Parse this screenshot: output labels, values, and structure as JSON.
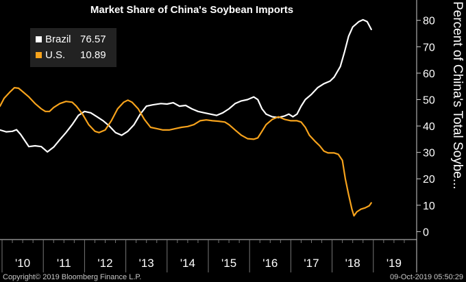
{
  "title": "Market Share of China's Soybean Imports",
  "footer": {
    "copyright": "Copyright© 2019 Bloomberg Finance L.P.",
    "timestamp": "09-Oct-2019 05:50:29"
  },
  "legend": [
    {
      "name": "Brazil",
      "value": "76.57",
      "color": "#ffffff"
    },
    {
      "name": "U.S.",
      "value": "10.89",
      "color": "#f7a31c"
    }
  ],
  "chart_data": {
    "type": "line",
    "title": "Market Share of China's Soybean Imports",
    "ylabel": "Percent of China's Total Soybe...",
    "ylim": [
      -3,
      82
    ],
    "yticks": [
      0,
      10,
      20,
      30,
      40,
      50,
      60,
      70,
      80
    ],
    "xlim": [
      2009.45,
      2019.55
    ],
    "xticks": [
      {
        "x": 2010,
        "label": "'10"
      },
      {
        "x": 2011,
        "label": "'11"
      },
      {
        "x": 2012,
        "label": "'12"
      },
      {
        "x": 2013,
        "label": "'13"
      },
      {
        "x": 2014,
        "label": "'14"
      },
      {
        "x": 2015,
        "label": "'15"
      },
      {
        "x": 2016,
        "label": "'16"
      },
      {
        "x": 2017,
        "label": "'17"
      },
      {
        "x": 2018,
        "label": "'18"
      },
      {
        "x": 2019,
        "label": "'19"
      }
    ],
    "grid": false,
    "legend_position": "top-left",
    "series": [
      {
        "name": "Brazil",
        "color": "#ffffff",
        "points": [
          [
            2009.45,
            38.5
          ],
          [
            2009.6,
            37.8
          ],
          [
            2009.75,
            38.0
          ],
          [
            2009.85,
            38.6
          ],
          [
            2009.95,
            36.8
          ],
          [
            2010.05,
            34.5
          ],
          [
            2010.15,
            32.2
          ],
          [
            2010.3,
            32.5
          ],
          [
            2010.45,
            32.2
          ],
          [
            2010.6,
            30.2
          ],
          [
            2010.75,
            32.0
          ],
          [
            2010.9,
            34.8
          ],
          [
            2011.05,
            37.5
          ],
          [
            2011.2,
            40.5
          ],
          [
            2011.35,
            44.0
          ],
          [
            2011.5,
            45.5
          ],
          [
            2011.65,
            45.0
          ],
          [
            2011.8,
            43.5
          ],
          [
            2011.95,
            42.0
          ],
          [
            2012.1,
            40.0
          ],
          [
            2012.25,
            37.5
          ],
          [
            2012.4,
            36.5
          ],
          [
            2012.55,
            38.0
          ],
          [
            2012.7,
            40.5
          ],
          [
            2012.85,
            44.5
          ],
          [
            2013.0,
            47.5
          ],
          [
            2013.15,
            48.0
          ],
          [
            2013.35,
            48.5
          ],
          [
            2013.5,
            48.3
          ],
          [
            2013.65,
            48.8
          ],
          [
            2013.8,
            47.5
          ],
          [
            2013.95,
            47.8
          ],
          [
            2014.1,
            46.5
          ],
          [
            2014.25,
            45.5
          ],
          [
            2014.4,
            45.0
          ],
          [
            2014.55,
            44.5
          ],
          [
            2014.7,
            44.0
          ],
          [
            2014.85,
            45.0
          ],
          [
            2015.0,
            46.5
          ],
          [
            2015.15,
            48.5
          ],
          [
            2015.3,
            49.5
          ],
          [
            2015.45,
            50.0
          ],
          [
            2015.6,
            51.0
          ],
          [
            2015.7,
            50.0
          ],
          [
            2015.8,
            46.5
          ],
          [
            2015.9,
            44.5
          ],
          [
            2016.05,
            43.5
          ],
          [
            2016.2,
            43.2
          ],
          [
            2016.35,
            43.8
          ],
          [
            2016.45,
            44.5
          ],
          [
            2016.55,
            43.5
          ],
          [
            2016.65,
            44.5
          ],
          [
            2016.75,
            47.5
          ],
          [
            2016.85,
            50.0
          ],
          [
            2017.0,
            52.0
          ],
          [
            2017.15,
            54.5
          ],
          [
            2017.3,
            56.0
          ],
          [
            2017.45,
            57.0
          ],
          [
            2017.55,
            58.5
          ],
          [
            2017.7,
            62.5
          ],
          [
            2017.8,
            68.0
          ],
          [
            2017.9,
            74.0
          ],
          [
            2018.0,
            77.5
          ],
          [
            2018.15,
            79.5
          ],
          [
            2018.25,
            80.2
          ],
          [
            2018.35,
            79.5
          ],
          [
            2018.45,
            76.57
          ]
        ]
      },
      {
        "name": "U.S.",
        "color": "#f7a31c",
        "points": [
          [
            2009.45,
            47.5
          ],
          [
            2009.55,
            50.5
          ],
          [
            2009.7,
            53.0
          ],
          [
            2009.8,
            54.5
          ],
          [
            2009.9,
            54.3
          ],
          [
            2010.0,
            53.0
          ],
          [
            2010.15,
            51.0
          ],
          [
            2010.3,
            48.5
          ],
          [
            2010.45,
            46.5
          ],
          [
            2010.55,
            45.5
          ],
          [
            2010.65,
            45.5
          ],
          [
            2010.75,
            47.0
          ],
          [
            2010.9,
            48.5
          ],
          [
            2011.05,
            49.3
          ],
          [
            2011.2,
            49.0
          ],
          [
            2011.3,
            47.5
          ],
          [
            2011.45,
            44.5
          ],
          [
            2011.6,
            40.5
          ],
          [
            2011.75,
            38.0
          ],
          [
            2011.85,
            37.5
          ],
          [
            2012.0,
            38.5
          ],
          [
            2012.15,
            42.0
          ],
          [
            2012.3,
            46.5
          ],
          [
            2012.45,
            49.0
          ],
          [
            2012.55,
            49.8
          ],
          [
            2012.65,
            49.0
          ],
          [
            2012.8,
            46.5
          ],
          [
            2012.95,
            42.5
          ],
          [
            2013.1,
            39.5
          ],
          [
            2013.25,
            39.0
          ],
          [
            2013.4,
            38.5
          ],
          [
            2013.55,
            38.5
          ],
          [
            2013.7,
            39.0
          ],
          [
            2013.85,
            39.5
          ],
          [
            2014.0,
            39.8
          ],
          [
            2014.15,
            40.5
          ],
          [
            2014.3,
            42.0
          ],
          [
            2014.45,
            42.3
          ],
          [
            2014.6,
            42.0
          ],
          [
            2014.75,
            41.8
          ],
          [
            2014.9,
            41.5
          ],
          [
            2015.0,
            40.5
          ],
          [
            2015.15,
            38.5
          ],
          [
            2015.3,
            36.5
          ],
          [
            2015.45,
            35.2
          ],
          [
            2015.6,
            35.0
          ],
          [
            2015.7,
            35.5
          ],
          [
            2015.8,
            38.0
          ],
          [
            2015.9,
            40.5
          ],
          [
            2016.05,
            42.5
          ],
          [
            2016.2,
            43.5
          ],
          [
            2016.35,
            42.5
          ],
          [
            2016.5,
            42.0
          ],
          [
            2016.65,
            42.0
          ],
          [
            2016.75,
            41.5
          ],
          [
            2016.85,
            39.5
          ],
          [
            2016.95,
            36.5
          ],
          [
            2017.1,
            34.0
          ],
          [
            2017.2,
            32.5
          ],
          [
            2017.3,
            30.5
          ],
          [
            2017.4,
            29.8
          ],
          [
            2017.55,
            29.8
          ],
          [
            2017.65,
            29.3
          ],
          [
            2017.75,
            27.0
          ],
          [
            2017.82,
            20.0
          ],
          [
            2017.9,
            14.0
          ],
          [
            2017.98,
            8.5
          ],
          [
            2018.03,
            6.0
          ],
          [
            2018.1,
            7.5
          ],
          [
            2018.2,
            8.5
          ],
          [
            2018.3,
            9.0
          ],
          [
            2018.4,
            9.8
          ],
          [
            2018.45,
            10.89
          ]
        ]
      }
    ]
  }
}
